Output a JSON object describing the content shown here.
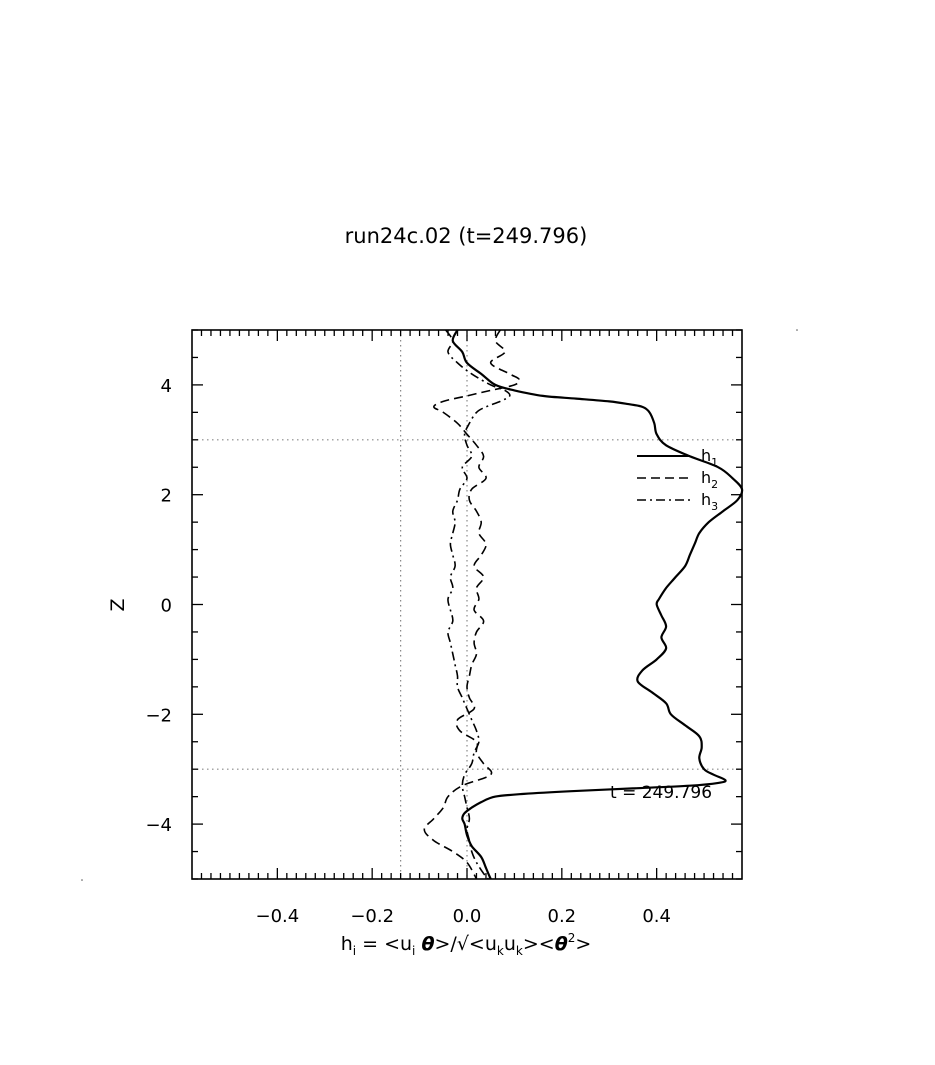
{
  "chart_data": {
    "type": "line",
    "title": "run24c.02 (t=249.796)",
    "xlabel": "h_i = <u_i θ>/√<u_k u_k><θ²>",
    "ylabel": "Z",
    "xlim": [
      -0.58,
      0.58
    ],
    "ylim": [
      -5,
      5
    ],
    "xticks": [
      -0.4,
      -0.2,
      0.0,
      0.2,
      0.4
    ],
    "xtick_labels": [
      "−0.4",
      "−0.2",
      "0.0",
      "0.2",
      "0.4"
    ],
    "yticks": [
      -4,
      -2,
      0,
      2,
      4
    ],
    "ytick_labels": [
      "−4",
      "−2",
      "0",
      "2",
      "4"
    ],
    "reference_lines": {
      "x": [
        -0.14,
        0.0
      ],
      "y": [
        3,
        -3
      ]
    },
    "grid": false,
    "legend_position": "right, upper-middle",
    "annotation": "t = 249.796",
    "series": [
      {
        "name": "h1",
        "style": "solid",
        "color": "#000000",
        "z": [
          5.0,
          4.8,
          4.6,
          4.4,
          4.2,
          4.0,
          3.9,
          3.8,
          3.75,
          3.7,
          3.65,
          3.6,
          3.5,
          3.3,
          3.1,
          2.9,
          2.7,
          2.5,
          2.3,
          2.1,
          1.9,
          1.7,
          1.5,
          1.3,
          1.1,
          0.9,
          0.7,
          0.5,
          0.3,
          0.1,
          0.0,
          -0.2,
          -0.4,
          -0.6,
          -0.8,
          -1.0,
          -1.2,
          -1.4,
          -1.6,
          -1.8,
          -2.0,
          -2.2,
          -2.4,
          -2.6,
          -2.8,
          -3.0,
          -3.1,
          -3.2,
          -3.25,
          -3.3,
          -3.35,
          -3.4,
          -3.45,
          -3.5,
          -3.6,
          -3.7,
          -3.8,
          -3.9,
          -4.0,
          -4.2,
          -4.4,
          -4.6,
          -4.8,
          -5.0
        ],
        "x": [
          -0.02,
          -0.03,
          -0.01,
          0.0,
          0.03,
          0.06,
          0.1,
          0.16,
          0.23,
          0.3,
          0.34,
          0.37,
          0.385,
          0.395,
          0.4,
          0.42,
          0.47,
          0.53,
          0.56,
          0.58,
          0.57,
          0.54,
          0.51,
          0.49,
          0.48,
          0.47,
          0.46,
          0.44,
          0.42,
          0.405,
          0.4,
          0.41,
          0.42,
          0.41,
          0.42,
          0.4,
          0.37,
          0.36,
          0.39,
          0.42,
          0.43,
          0.46,
          0.49,
          0.495,
          0.49,
          0.5,
          0.52,
          0.545,
          0.53,
          0.47,
          0.35,
          0.22,
          0.12,
          0.06,
          0.03,
          0.01,
          -0.005,
          -0.01,
          -0.005,
          0.0,
          0.01,
          0.03,
          0.04,
          0.05
        ]
      },
      {
        "name": "h2",
        "style": "dashed",
        "color": "#000000",
        "z": [
          5.0,
          4.8,
          4.6,
          4.4,
          4.2,
          4.1,
          4.0,
          3.9,
          3.8,
          3.7,
          3.6,
          3.5,
          3.3,
          3.1,
          2.9,
          2.7,
          2.5,
          2.3,
          2.1,
          1.9,
          1.7,
          1.5,
          1.3,
          1.1,
          0.9,
          0.7,
          0.5,
          0.3,
          0.1,
          -0.1,
          -0.3,
          -0.5,
          -0.7,
          -0.9,
          -1.1,
          -1.3,
          -1.5,
          -1.7,
          -1.9,
          -2.1,
          -2.3,
          -2.5,
          -2.7,
          -2.9,
          -3.1,
          -3.3,
          -3.5,
          -3.7,
          -3.9,
          -4.1,
          -4.3,
          -4.5,
          -4.7,
          -5.0
        ],
        "x": [
          0.07,
          0.06,
          0.08,
          0.05,
          0.09,
          0.11,
          0.1,
          0.05,
          0.0,
          -0.05,
          -0.07,
          -0.05,
          -0.02,
          0.0,
          0.02,
          0.035,
          0.025,
          0.04,
          0.01,
          0.005,
          0.02,
          0.03,
          0.025,
          0.04,
          0.03,
          0.015,
          0.035,
          0.02,
          0.025,
          0.015,
          0.035,
          0.02,
          0.015,
          0.02,
          0.01,
          0.005,
          0.0,
          0.005,
          0.015,
          -0.02,
          -0.015,
          0.02,
          0.02,
          0.035,
          0.05,
          -0.01,
          -0.04,
          -0.05,
          -0.07,
          -0.09,
          -0.07,
          -0.03,
          0.0,
          0.02
        ]
      },
      {
        "name": "h3",
        "style": "dashdot",
        "color": "#000000",
        "z": [
          5.0,
          4.8,
          4.6,
          4.4,
          4.2,
          4.0,
          3.9,
          3.8,
          3.7,
          3.6,
          3.5,
          3.3,
          3.1,
          2.9,
          2.7,
          2.5,
          2.3,
          2.1,
          1.9,
          1.7,
          1.5,
          1.3,
          1.1,
          0.9,
          0.7,
          0.5,
          0.3,
          0.1,
          -0.1,
          -0.3,
          -0.5,
          -0.7,
          -0.9,
          -1.1,
          -1.3,
          -1.5,
          -1.7,
          -1.9,
          -2.1,
          -2.3,
          -2.5,
          -2.7,
          -2.9,
          -3.1,
          -3.3,
          -3.5,
          -3.7,
          -3.9,
          -4.1,
          -4.3,
          -4.5,
          -4.7,
          -4.9,
          -5.0
        ],
        "x": [
          -0.045,
          -0.03,
          -0.04,
          -0.02,
          0.01,
          0.05,
          0.08,
          0.09,
          0.07,
          0.04,
          0.02,
          0.005,
          -0.005,
          0.0,
          0.01,
          -0.01,
          0.0,
          -0.015,
          -0.02,
          -0.03,
          -0.025,
          -0.03,
          -0.035,
          -0.03,
          -0.025,
          -0.035,
          -0.03,
          -0.04,
          -0.035,
          -0.03,
          -0.04,
          -0.035,
          -0.03,
          -0.025,
          -0.02,
          -0.02,
          -0.01,
          0.0,
          0.01,
          0.02,
          0.025,
          0.015,
          0.01,
          -0.005,
          -0.01,
          -0.005,
          0.0,
          0.005,
          0.0,
          0.005,
          0.01,
          0.02,
          0.035,
          0.045
        ]
      }
    ]
  },
  "legend": [
    {
      "label": "h",
      "sub": "1",
      "style": "solid"
    },
    {
      "label": "h",
      "sub": "2",
      "style": "dashed"
    },
    {
      "label": "h",
      "sub": "3",
      "style": "dashdot"
    }
  ]
}
